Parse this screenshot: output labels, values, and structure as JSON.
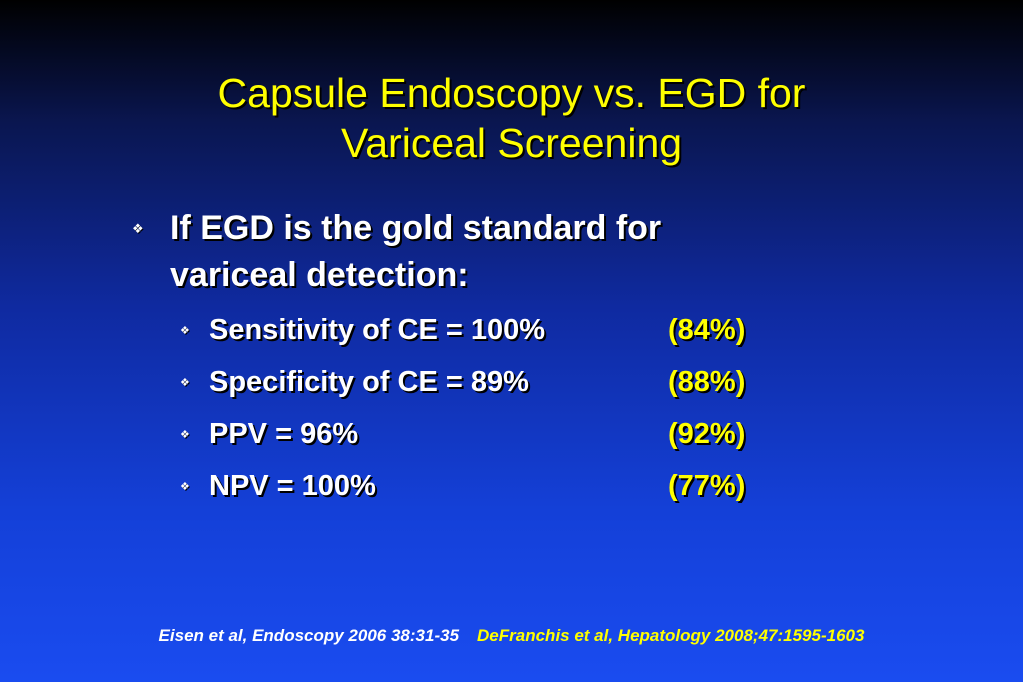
{
  "slide": {
    "title_line1": "Capsule Endoscopy vs. EGD for",
    "title_line2": "Variceal Screening",
    "main_bullet": {
      "line1": "If EGD is the gold standard for",
      "line2": "variceal detection:"
    },
    "bullet_glyph": "❖",
    "sub_bullets": [
      {
        "label": "Sensitivity of CE = 100%",
        "value": "(84%)"
      },
      {
        "label": "Specificity of CE = 89%",
        "value": "(88%)"
      },
      {
        "label": "PPV = 96%",
        "value": "(92%)"
      },
      {
        "label": "NPV = 100%",
        "value": "(77%)"
      }
    ],
    "footer": {
      "ref1": "Eisen et al, Endoscopy 2006 38:31-35",
      "ref2": "DeFranchis et al, Hepatology 2008;47:1595-1603"
    },
    "colors": {
      "title": "#ffff00",
      "body_text": "#ffffff",
      "highlight": "#ffff00",
      "background_top": "#000000",
      "background_bottom": "#1a4cf0"
    }
  }
}
